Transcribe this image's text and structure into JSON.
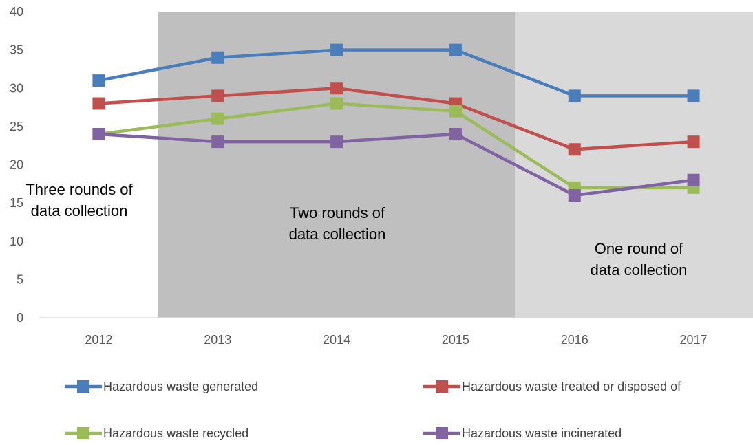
{
  "chart_data": {
    "type": "line",
    "title": "",
    "xlabel": "",
    "ylabel": "",
    "ylim": [
      0,
      40
    ],
    "y_ticks": [
      0,
      5,
      10,
      15,
      20,
      25,
      30,
      35,
      40
    ],
    "categories": [
      "2012",
      "2013",
      "2014",
      "2015",
      "2016",
      "2017"
    ],
    "grid": false,
    "legend_position": "bottom",
    "marker": "square",
    "series": [
      {
        "name": "Hazardous waste generated",
        "color": "#4a7ebb",
        "values": [
          31,
          34,
          35,
          35,
          29,
          29
        ]
      },
      {
        "name": "Hazardous waste treated or disposed of",
        "color": "#c0504d",
        "values": [
          28,
          29,
          30,
          28,
          22,
          23
        ]
      },
      {
        "name": "Hazardous waste recycled",
        "color": "#9bbb59",
        "values": [
          24,
          26,
          28,
          27,
          17,
          17
        ]
      },
      {
        "name": "Hazardous waste incinerated",
        "color": "#8064a2",
        "values": [
          24,
          23,
          23,
          24,
          16,
          18
        ]
      }
    ],
    "bands": [
      {
        "from_category": "2012",
        "to_category": "2012",
        "color": "#ffffff"
      },
      {
        "from_category": "2013",
        "to_category": "2015",
        "color": "#bfbfbf"
      },
      {
        "from_category": "2016",
        "to_category": "2017",
        "color": "#d9d9d9"
      }
    ],
    "annotations": [
      {
        "lines": [
          "Three rounds of",
          "data collection"
        ]
      },
      {
        "lines": [
          "Two rounds of",
          "data collection"
        ]
      },
      {
        "lines": [
          "One round of",
          "data collection"
        ]
      }
    ]
  }
}
